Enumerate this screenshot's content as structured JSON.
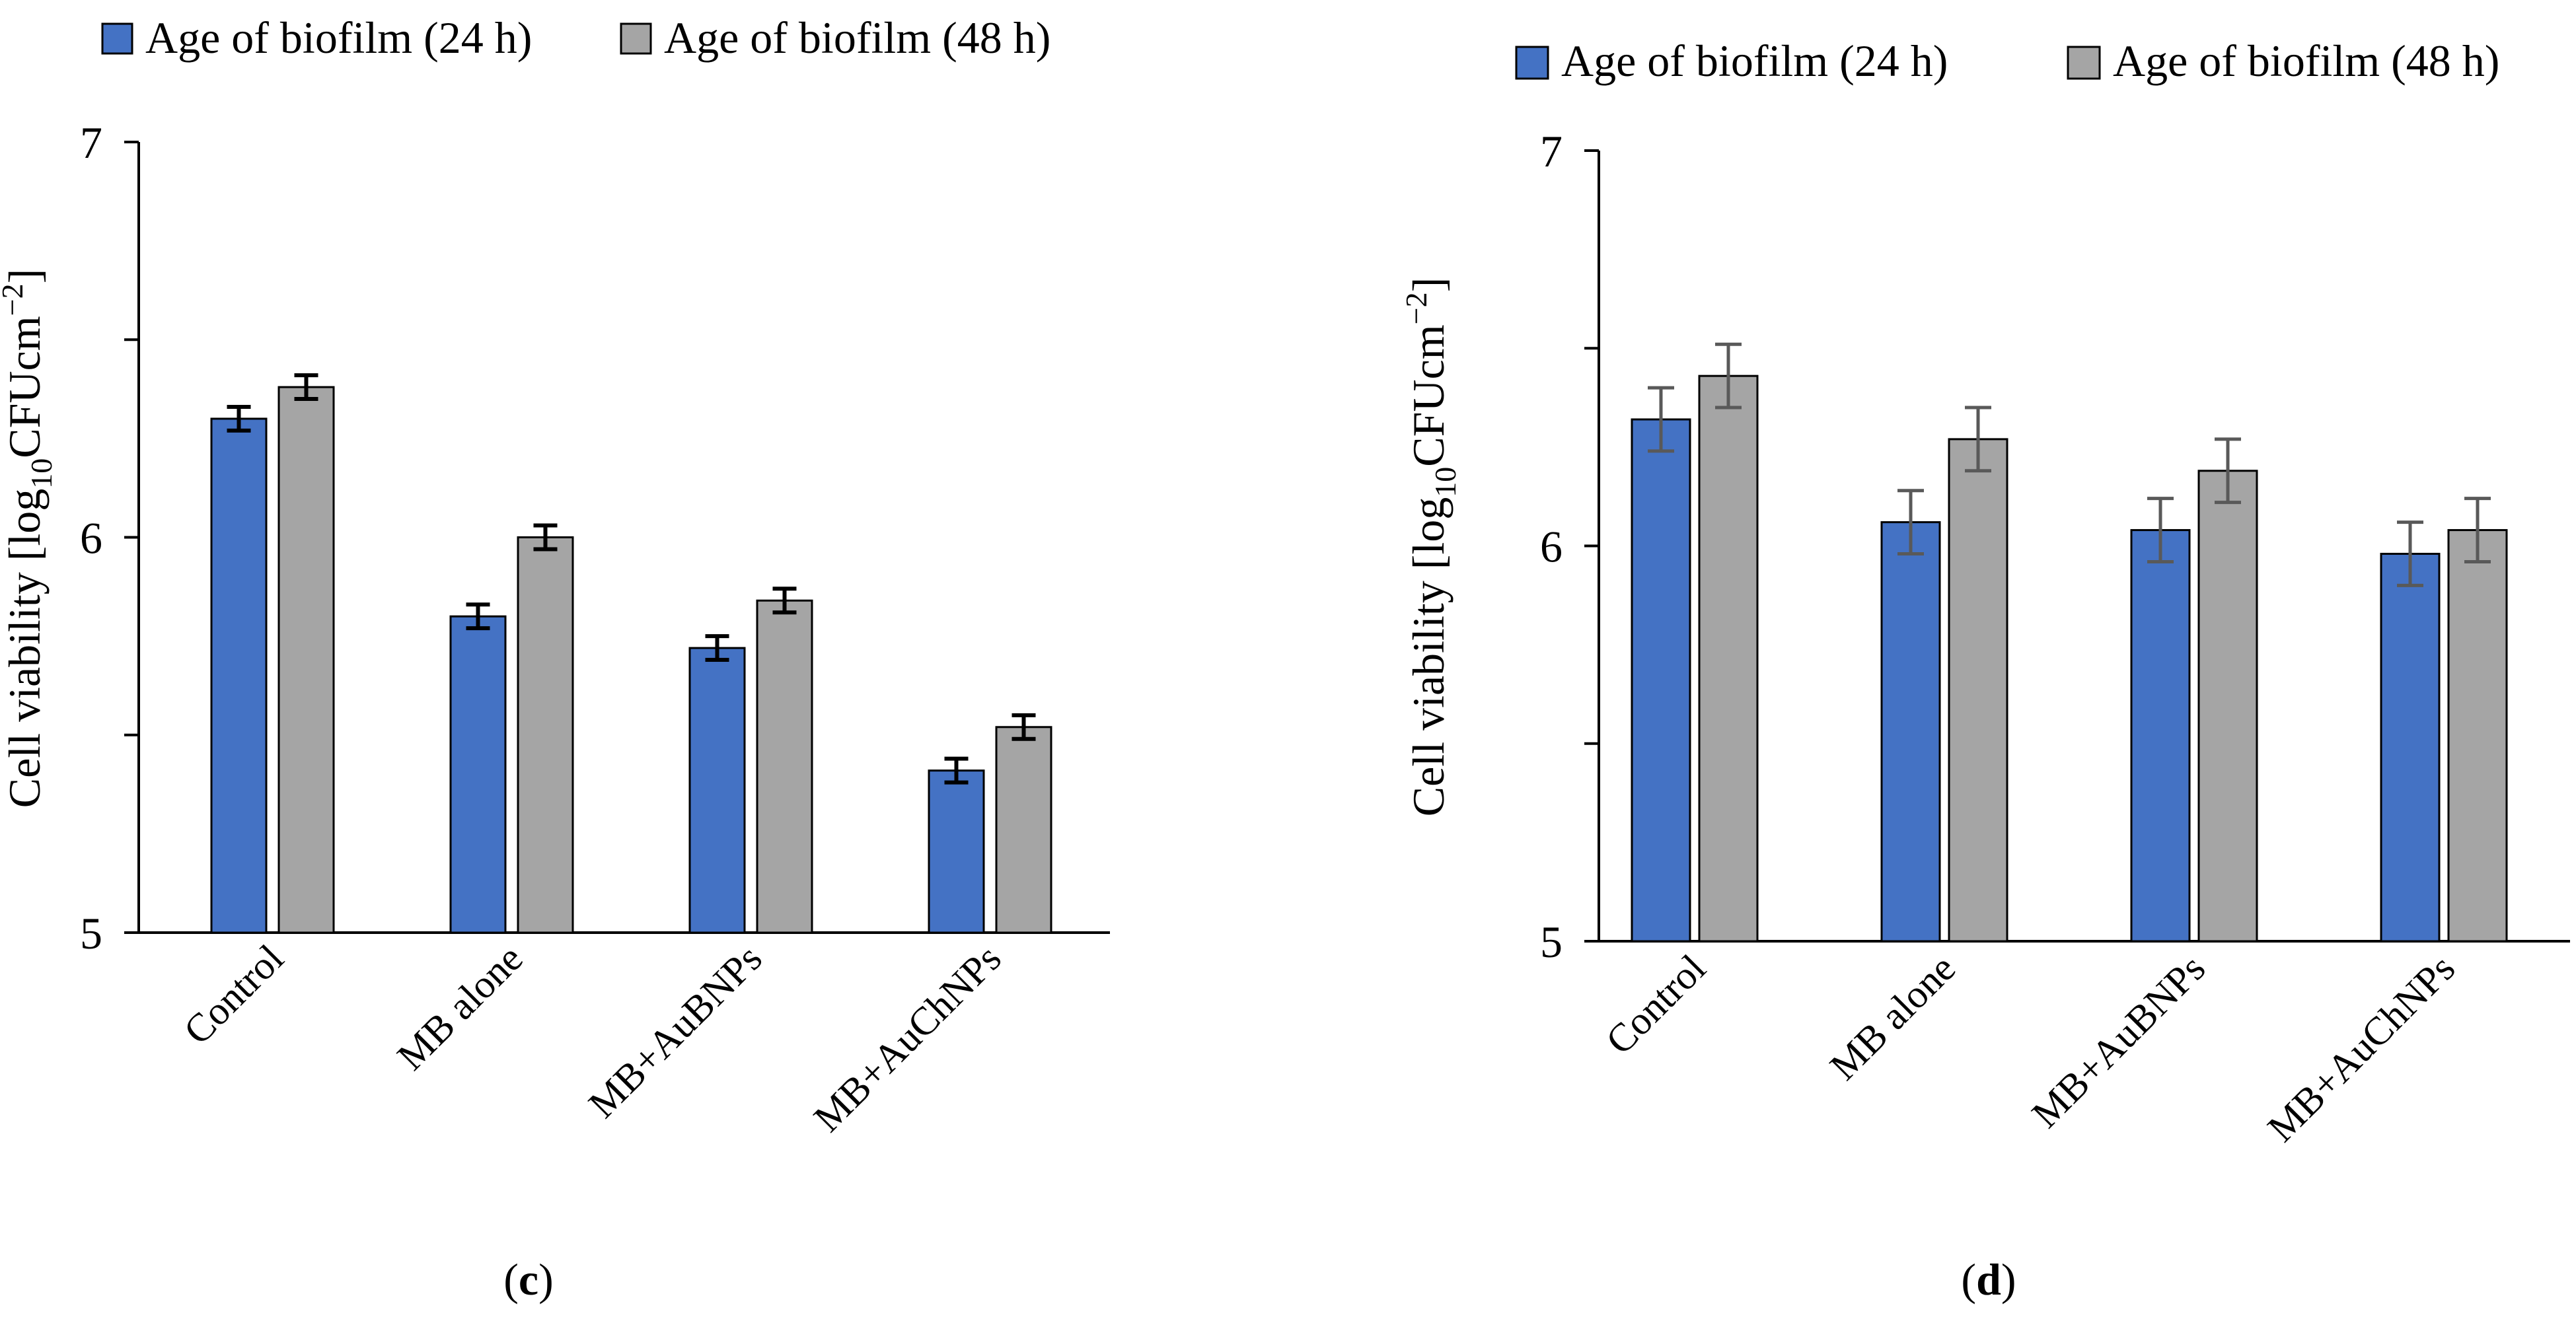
{
  "colors": {
    "series_24h": "#4472C4",
    "series_48h": "#A5A5A5",
    "bar_stroke": "#000000",
    "axis": "#000000",
    "error_c": "#000000",
    "error_d": "#595959"
  },
  "chart_data": [
    {
      "type": "bar",
      "panel": "c",
      "panel_label_prefix": "(",
      "panel_label_suffix": ")",
      "title": "",
      "categories": [
        "Control",
        "MB alone",
        "MB+AuBNPs",
        "MB+AuChNPs"
      ],
      "series": [
        {
          "name": "Age of biofilm (24 h)",
          "values": [
            6.3,
            5.8,
            5.72,
            5.41
          ],
          "errors": [
            0.03,
            0.03,
            0.03,
            0.03
          ]
        },
        {
          "name": "Age of biofilm (48 h)",
          "values": [
            6.38,
            6.0,
            5.84,
            5.52
          ],
          "errors": [
            0.03,
            0.03,
            0.03,
            0.03
          ]
        }
      ],
      "ylabel": {
        "prefix": "Cell viability [log",
        "subscript": "10",
        "suffix": "CFUcm",
        "superscript": "−2",
        "close": "]"
      },
      "xlabel": "",
      "ylim": [
        5,
        7
      ],
      "yticks": [
        "5",
        "6",
        "7"
      ],
      "legend_position": "top"
    },
    {
      "type": "bar",
      "panel": "d",
      "panel_label_prefix": "(",
      "panel_label_suffix": ")",
      "title": "",
      "categories": [
        "Control",
        "MB alone",
        "MB+AuBNPs",
        "MB+AuChNPs"
      ],
      "series": [
        {
          "name": "Age of biofilm (24 h)",
          "values": [
            6.32,
            6.06,
            6.04,
            5.98
          ],
          "errors": [
            0.08,
            0.08,
            0.08,
            0.08
          ]
        },
        {
          "name": "Age of biofilm (48 h)",
          "values": [
            6.43,
            6.27,
            6.19,
            6.04
          ],
          "errors": [
            0.08,
            0.08,
            0.08,
            0.08
          ]
        }
      ],
      "ylabel": {
        "prefix": "Cell viability [log",
        "subscript": "10",
        "suffix": "CFUcm",
        "superscript": "−2",
        "close": "]"
      },
      "xlabel": "",
      "ylim": [
        5,
        7
      ],
      "yticks": [
        "5",
        "6",
        "7"
      ],
      "legend_position": "top"
    }
  ]
}
